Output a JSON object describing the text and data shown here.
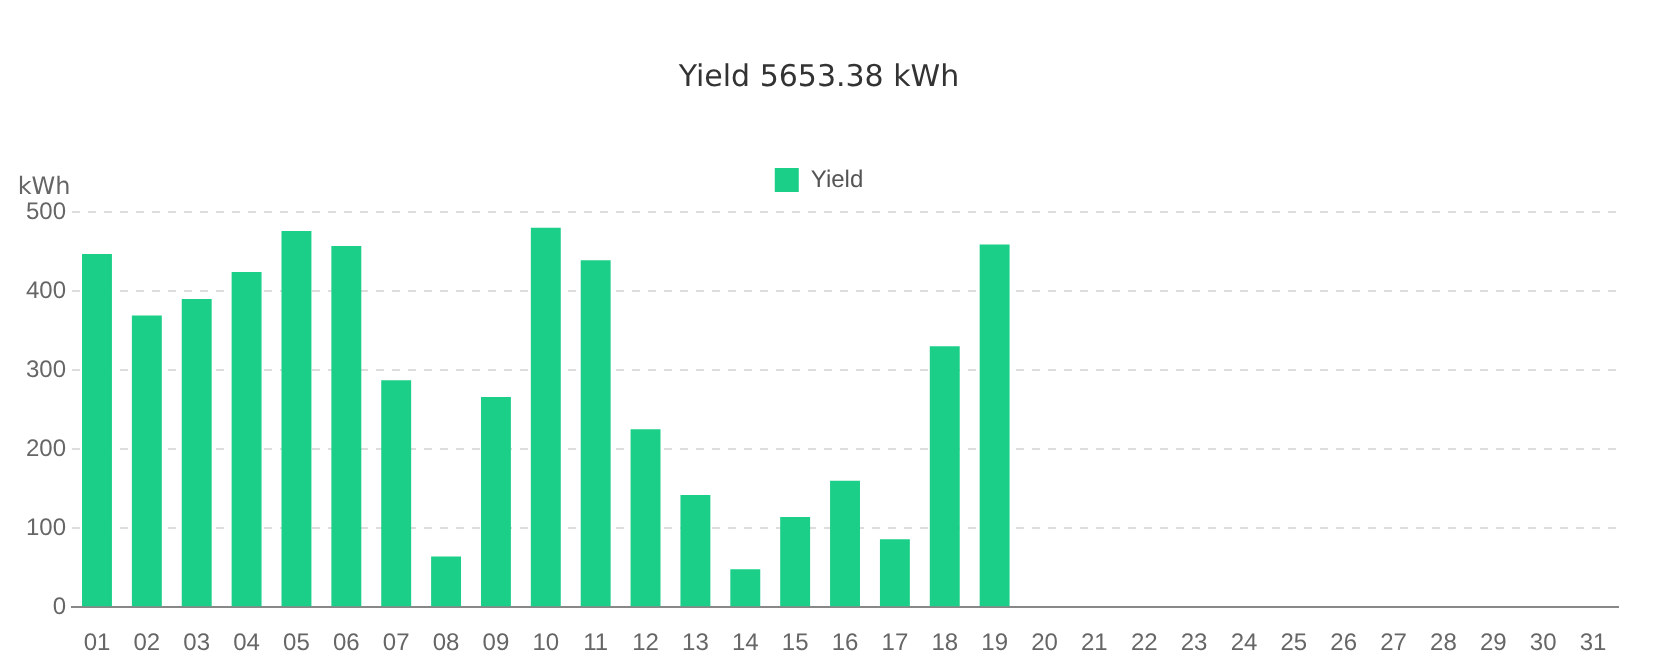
{
  "chart_data": {
    "type": "bar",
    "title": "Yield 5653.38 kWh",
    "ylabel": "kWh",
    "categories": [
      "01",
      "02",
      "03",
      "04",
      "05",
      "06",
      "07",
      "08",
      "09",
      "10",
      "11",
      "12",
      "13",
      "14",
      "15",
      "16",
      "17",
      "18",
      "19",
      "20",
      "21",
      "22",
      "23",
      "24",
      "25",
      "26",
      "27",
      "28",
      "29",
      "30",
      "31"
    ],
    "series": [
      {
        "name": "Yield",
        "color": "#1ccf88",
        "values": [
          447,
          369,
          390,
          424,
          476,
          457,
          287,
          64,
          266,
          480,
          439,
          225,
          142,
          48,
          114,
          160,
          86,
          330,
          459,
          null,
          null,
          null,
          null,
          null,
          null,
          null,
          null,
          null,
          null,
          null,
          null
        ]
      }
    ],
    "ylim": [
      0,
      500
    ],
    "yticks": [
      0,
      100,
      200,
      300,
      400,
      500
    ],
    "grid": "y",
    "legend": "top"
  }
}
